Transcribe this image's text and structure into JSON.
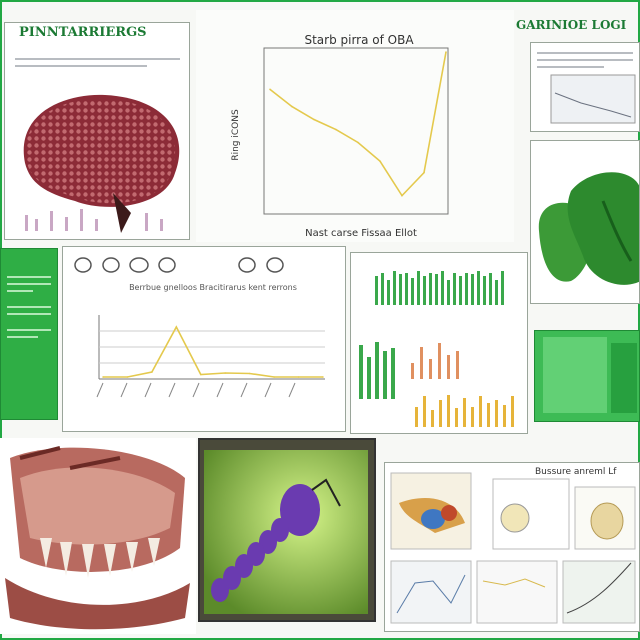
{
  "panels": {
    "top_left_title": "PINNTARRIERGS",
    "top_right_title": "GARINIOE LOGI",
    "center_chart_title": "Starb pirra of OBA",
    "center_chart_xlabel": "Nast carse Fissaa Ellot",
    "center_chart_ylabel": "Ring iCONS",
    "left_mid_chart_caption": "Berrbue gnelloos Bracitirarus kent rerrons",
    "bottom_right_caption": "Bussure  anreml Lf"
  },
  "chart_data": [
    {
      "type": "line",
      "title": "Starb pirra of OBA",
      "xlabel": "Nast carse Fissaa Ellot",
      "ylabel": "Ring iCONS",
      "x": [
        0,
        1,
        2,
        3,
        4,
        5,
        6,
        7,
        8
      ],
      "values": [
        8.4,
        7.2,
        6.3,
        5.6,
        4.7,
        3.4,
        1.0,
        2.6,
        11.0
      ],
      "ylim": [
        0,
        11
      ]
    },
    {
      "type": "line",
      "title": "",
      "values": [
        0,
        0,
        0.1,
        1.0,
        0.05,
        0.08,
        0.07,
        0,
        0,
        0
      ],
      "ylim": [
        0,
        1.2
      ]
    }
  ],
  "colors": {
    "accent_green": "#2fae45",
    "line_yellow": "#e4c94d"
  }
}
